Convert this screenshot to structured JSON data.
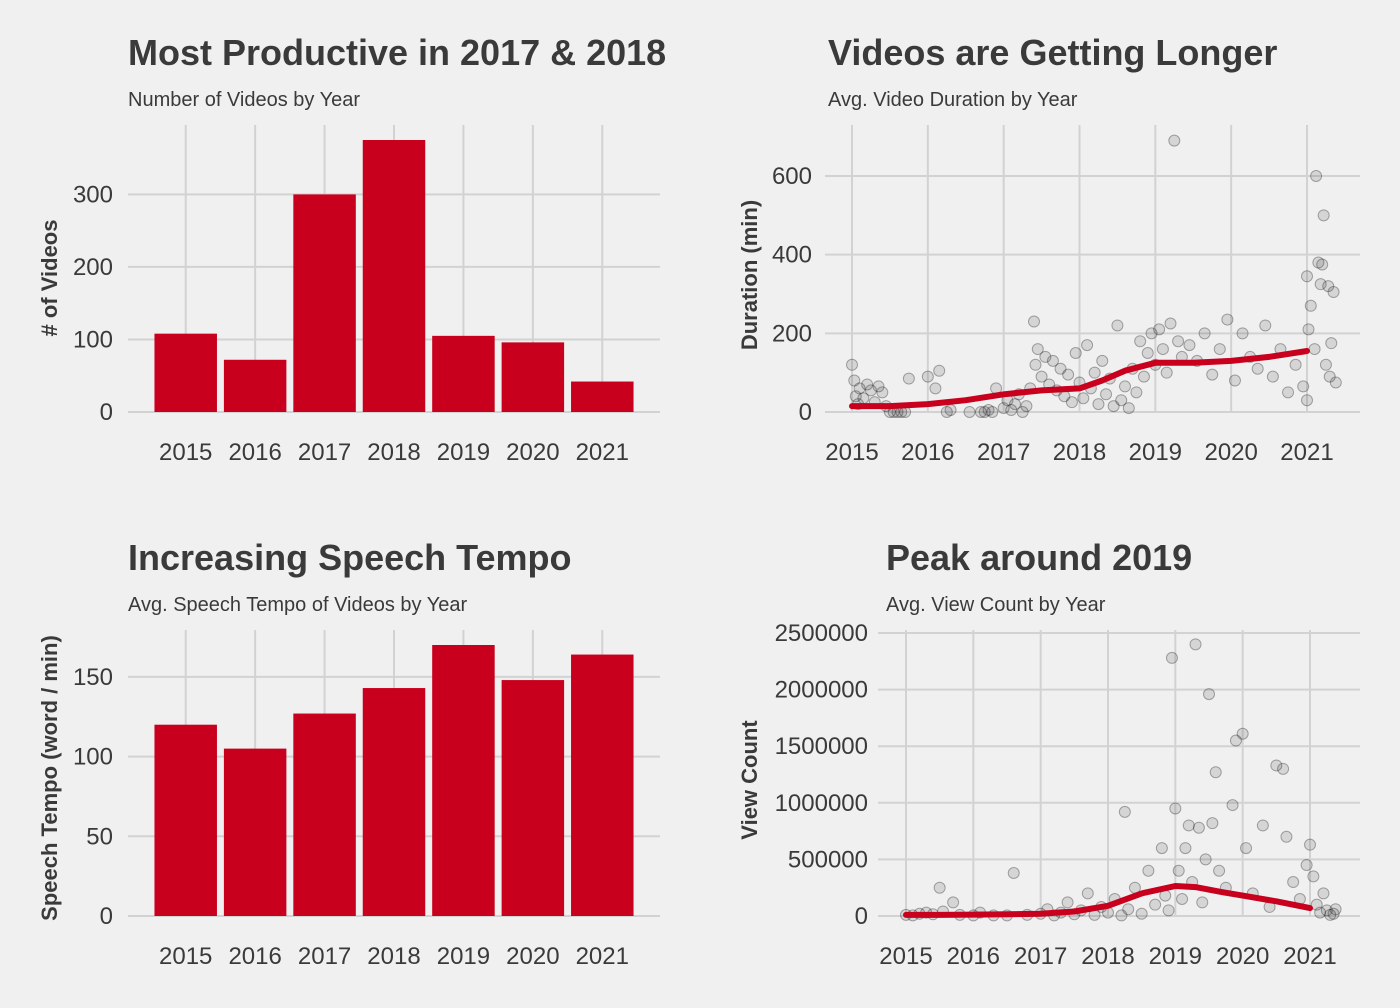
{
  "colors": {
    "background": "#f0f0f0",
    "bar": "#c8001e",
    "smooth_line": "#c8001e",
    "points": "#1a1a1a",
    "grid": "#d2d2d2",
    "text": "#3a3a3a"
  },
  "chart_data": [
    {
      "type": "bar",
      "title": "Most Productive in 2017 & 2018",
      "subtitle": "Number of Videos by Year",
      "xlabel": "",
      "ylabel": "# of Videos",
      "categories": [
        "2015",
        "2016",
        "2017",
        "2018",
        "2019",
        "2020",
        "2021"
      ],
      "values": [
        108,
        72,
        300,
        375,
        105,
        96,
        42
      ],
      "yticks": [
        0,
        100,
        200,
        300
      ],
      "ylim": [
        0,
        375
      ]
    },
    {
      "type": "scatter",
      "title": "Videos are Getting Longer",
      "subtitle": "Avg. Video Duration by Year",
      "xlabel": "",
      "ylabel": "Duration (min)",
      "xticks": [
        2015,
        2016,
        2017,
        2018,
        2019,
        2020,
        2021
      ],
      "yticks": [
        0,
        200,
        400,
        600
      ],
      "xlim": [
        2015,
        2021
      ],
      "ylim": [
        0,
        600
      ],
      "smooth_line": {
        "x": [
          2015.0,
          2015.5,
          2016.0,
          2016.5,
          2017.0,
          2017.5,
          2018.0,
          2018.3,
          2018.6,
          2019.0,
          2019.5,
          2020.0,
          2020.5,
          2021.0
        ],
        "y": [
          15,
          15,
          20,
          30,
          45,
          55,
          60,
          80,
          105,
          125,
          125,
          130,
          140,
          155
        ]
      },
      "points": [
        {
          "x": 2015.0,
          "y": 120
        },
        {
          "x": 2015.03,
          "y": 80
        },
        {
          "x": 2015.05,
          "y": 40
        },
        {
          "x": 2015.08,
          "y": 20
        },
        {
          "x": 2015.1,
          "y": 60
        },
        {
          "x": 2015.15,
          "y": 35
        },
        {
          "x": 2015.2,
          "y": 70
        },
        {
          "x": 2015.25,
          "y": 55
        },
        {
          "x": 2015.3,
          "y": 25
        },
        {
          "x": 2015.35,
          "y": 65
        },
        {
          "x": 2015.4,
          "y": 50
        },
        {
          "x": 2015.45,
          "y": 15
        },
        {
          "x": 2015.5,
          "y": 0
        },
        {
          "x": 2015.55,
          "y": 0
        },
        {
          "x": 2015.6,
          "y": 0
        },
        {
          "x": 2015.65,
          "y": 0
        },
        {
          "x": 2015.7,
          "y": 0
        },
        {
          "x": 2015.75,
          "y": 85
        },
        {
          "x": 2016.0,
          "y": 90
        },
        {
          "x": 2016.1,
          "y": 60
        },
        {
          "x": 2016.15,
          "y": 105
        },
        {
          "x": 2016.25,
          "y": 0
        },
        {
          "x": 2016.3,
          "y": 5
        },
        {
          "x": 2016.55,
          "y": 0
        },
        {
          "x": 2016.7,
          "y": 0
        },
        {
          "x": 2016.75,
          "y": 0
        },
        {
          "x": 2016.8,
          "y": 5
        },
        {
          "x": 2016.85,
          "y": 0
        },
        {
          "x": 2016.9,
          "y": 60
        },
        {
          "x": 2017.0,
          "y": 10
        },
        {
          "x": 2017.05,
          "y": 30
        },
        {
          "x": 2017.1,
          "y": 5
        },
        {
          "x": 2017.15,
          "y": 20
        },
        {
          "x": 2017.2,
          "y": 45
        },
        {
          "x": 2017.25,
          "y": 0
        },
        {
          "x": 2017.3,
          "y": 15
        },
        {
          "x": 2017.35,
          "y": 60
        },
        {
          "x": 2017.4,
          "y": 230
        },
        {
          "x": 2017.42,
          "y": 120
        },
        {
          "x": 2017.45,
          "y": 160
        },
        {
          "x": 2017.5,
          "y": 90
        },
        {
          "x": 2017.55,
          "y": 140
        },
        {
          "x": 2017.6,
          "y": 70
        },
        {
          "x": 2017.65,
          "y": 130
        },
        {
          "x": 2017.7,
          "y": 55
        },
        {
          "x": 2017.75,
          "y": 110
        },
        {
          "x": 2017.8,
          "y": 40
        },
        {
          "x": 2017.85,
          "y": 95
        },
        {
          "x": 2017.9,
          "y": 25
        },
        {
          "x": 2017.95,
          "y": 150
        },
        {
          "x": 2018.0,
          "y": 75
        },
        {
          "x": 2018.05,
          "y": 35
        },
        {
          "x": 2018.1,
          "y": 170
        },
        {
          "x": 2018.15,
          "y": 60
        },
        {
          "x": 2018.2,
          "y": 100
        },
        {
          "x": 2018.25,
          "y": 20
        },
        {
          "x": 2018.3,
          "y": 130
        },
        {
          "x": 2018.35,
          "y": 45
        },
        {
          "x": 2018.4,
          "y": 85
        },
        {
          "x": 2018.45,
          "y": 15
        },
        {
          "x": 2018.5,
          "y": 220
        },
        {
          "x": 2018.55,
          "y": 30
        },
        {
          "x": 2018.6,
          "y": 65
        },
        {
          "x": 2018.65,
          "y": 10
        },
        {
          "x": 2018.7,
          "y": 110
        },
        {
          "x": 2018.75,
          "y": 50
        },
        {
          "x": 2018.8,
          "y": 180
        },
        {
          "x": 2018.85,
          "y": 90
        },
        {
          "x": 2018.9,
          "y": 150
        },
        {
          "x": 2018.95,
          "y": 200
        },
        {
          "x": 2019.0,
          "y": 120
        },
        {
          "x": 2019.05,
          "y": 210
        },
        {
          "x": 2019.1,
          "y": 160
        },
        {
          "x": 2019.15,
          "y": 100
        },
        {
          "x": 2019.2,
          "y": 225
        },
        {
          "x": 2019.25,
          "y": 690
        },
        {
          "x": 2019.3,
          "y": 180
        },
        {
          "x": 2019.35,
          "y": 140
        },
        {
          "x": 2019.45,
          "y": 170
        },
        {
          "x": 2019.55,
          "y": 130
        },
        {
          "x": 2019.65,
          "y": 200
        },
        {
          "x": 2019.75,
          "y": 95
        },
        {
          "x": 2019.85,
          "y": 160
        },
        {
          "x": 2019.95,
          "y": 235
        },
        {
          "x": 2020.05,
          "y": 80
        },
        {
          "x": 2020.15,
          "y": 200
        },
        {
          "x": 2020.25,
          "y": 140
        },
        {
          "x": 2020.35,
          "y": 110
        },
        {
          "x": 2020.45,
          "y": 220
        },
        {
          "x": 2020.55,
          "y": 90
        },
        {
          "x": 2020.65,
          "y": 160
        },
        {
          "x": 2020.75,
          "y": 50
        },
        {
          "x": 2020.85,
          "y": 120
        },
        {
          "x": 2020.95,
          "y": 65
        },
        {
          "x": 2021.0,
          "y": 30
        },
        {
          "x": 2021.0,
          "y": 345
        },
        {
          "x": 2021.02,
          "y": 210
        },
        {
          "x": 2021.05,
          "y": 270
        },
        {
          "x": 2021.1,
          "y": 160
        },
        {
          "x": 2021.12,
          "y": 600
        },
        {
          "x": 2021.15,
          "y": 380
        },
        {
          "x": 2021.18,
          "y": 325
        },
        {
          "x": 2021.2,
          "y": 375
        },
        {
          "x": 2021.22,
          "y": 500
        },
        {
          "x": 2021.25,
          "y": 120
        },
        {
          "x": 2021.28,
          "y": 320
        },
        {
          "x": 2021.3,
          "y": 90
        },
        {
          "x": 2021.32,
          "y": 175
        },
        {
          "x": 2021.35,
          "y": 305
        },
        {
          "x": 2021.38,
          "y": 75
        }
      ]
    },
    {
      "type": "bar",
      "title": "Increasing Speech Tempo",
      "subtitle": "Avg. Speech Tempo of Videos by Year",
      "xlabel": "",
      "ylabel": "Speech Tempo (word / min)",
      "categories": [
        "2015",
        "2016",
        "2017",
        "2018",
        "2019",
        "2020",
        "2021"
      ],
      "values": [
        120,
        105,
        127,
        143,
        170,
        148,
        164
      ],
      "yticks": [
        0,
        50,
        100,
        150
      ],
      "ylim": [
        0,
        170
      ]
    },
    {
      "type": "scatter",
      "title": "Peak around 2019",
      "subtitle": "Avg. View Count by Year",
      "xlabel": "",
      "ylabel": "View Count",
      "xticks": [
        2015,
        2016,
        2017,
        2018,
        2019,
        2020,
        2021
      ],
      "yticks": [
        0,
        500000,
        1000000,
        1500000,
        2000000,
        2500000
      ],
      "xlim": [
        2015,
        2021
      ],
      "ylim": [
        0,
        2500000
      ],
      "smooth_line": {
        "x": [
          2015.0,
          2015.5,
          2016.0,
          2016.5,
          2017.0,
          2017.5,
          2018.0,
          2018.5,
          2019.0,
          2019.3,
          2019.7,
          2020.0,
          2020.5,
          2021.0
        ],
        "y": [
          10000,
          10000,
          12000,
          15000,
          20000,
          40000,
          90000,
          200000,
          265000,
          255000,
          210000,
          180000,
          130000,
          70000
        ]
      },
      "points": [
        {
          "x": 2015.0,
          "y": 10000
        },
        {
          "x": 2015.1,
          "y": 5000
        },
        {
          "x": 2015.2,
          "y": 20000
        },
        {
          "x": 2015.3,
          "y": 30000
        },
        {
          "x": 2015.4,
          "y": 15000
        },
        {
          "x": 2015.5,
          "y": 250000
        },
        {
          "x": 2015.55,
          "y": 40000
        },
        {
          "x": 2015.7,
          "y": 120000
        },
        {
          "x": 2015.8,
          "y": 10000
        },
        {
          "x": 2016.0,
          "y": 5000
        },
        {
          "x": 2016.1,
          "y": 30000
        },
        {
          "x": 2016.3,
          "y": 5000
        },
        {
          "x": 2016.5,
          "y": 5000
        },
        {
          "x": 2016.6,
          "y": 380000
        },
        {
          "x": 2016.8,
          "y": 10000
        },
        {
          "x": 2017.0,
          "y": 20000
        },
        {
          "x": 2017.1,
          "y": 60000
        },
        {
          "x": 2017.2,
          "y": 5000
        },
        {
          "x": 2017.3,
          "y": 30000
        },
        {
          "x": 2017.4,
          "y": 120000
        },
        {
          "x": 2017.5,
          "y": 15000
        },
        {
          "x": 2017.6,
          "y": 50000
        },
        {
          "x": 2017.7,
          "y": 200000
        },
        {
          "x": 2017.8,
          "y": 10000
        },
        {
          "x": 2017.9,
          "y": 80000
        },
        {
          "x": 2018.0,
          "y": 30000
        },
        {
          "x": 2018.1,
          "y": 150000
        },
        {
          "x": 2018.2,
          "y": 5000
        },
        {
          "x": 2018.25,
          "y": 920000
        },
        {
          "x": 2018.3,
          "y": 60000
        },
        {
          "x": 2018.4,
          "y": 250000
        },
        {
          "x": 2018.5,
          "y": 20000
        },
        {
          "x": 2018.6,
          "y": 400000
        },
        {
          "x": 2018.7,
          "y": 100000
        },
        {
          "x": 2018.8,
          "y": 600000
        },
        {
          "x": 2018.85,
          "y": 180000
        },
        {
          "x": 2018.9,
          "y": 50000
        },
        {
          "x": 2018.95,
          "y": 2280000
        },
        {
          "x": 2019.0,
          "y": 950000
        },
        {
          "x": 2019.05,
          "y": 400000
        },
        {
          "x": 2019.1,
          "y": 150000
        },
        {
          "x": 2019.15,
          "y": 600000
        },
        {
          "x": 2019.2,
          "y": 800000
        },
        {
          "x": 2019.25,
          "y": 300000
        },
        {
          "x": 2019.3,
          "y": 2400000
        },
        {
          "x": 2019.35,
          "y": 780000
        },
        {
          "x": 2019.4,
          "y": 120000
        },
        {
          "x": 2019.45,
          "y": 500000
        },
        {
          "x": 2019.5,
          "y": 1960000
        },
        {
          "x": 2019.55,
          "y": 820000
        },
        {
          "x": 2019.6,
          "y": 1270000
        },
        {
          "x": 2019.65,
          "y": 400000
        },
        {
          "x": 2019.75,
          "y": 250000
        },
        {
          "x": 2019.85,
          "y": 980000
        },
        {
          "x": 2019.9,
          "y": 1550000
        },
        {
          "x": 2020.0,
          "y": 1610000
        },
        {
          "x": 2020.05,
          "y": 600000
        },
        {
          "x": 2020.15,
          "y": 200000
        },
        {
          "x": 2020.3,
          "y": 800000
        },
        {
          "x": 2020.4,
          "y": 80000
        },
        {
          "x": 2020.5,
          "y": 1330000
        },
        {
          "x": 2020.6,
          "y": 1300000
        },
        {
          "x": 2020.65,
          "y": 700000
        },
        {
          "x": 2020.75,
          "y": 300000
        },
        {
          "x": 2020.85,
          "y": 150000
        },
        {
          "x": 2020.95,
          "y": 450000
        },
        {
          "x": 2021.0,
          "y": 630000
        },
        {
          "x": 2021.05,
          "y": 350000
        },
        {
          "x": 2021.1,
          "y": 100000
        },
        {
          "x": 2021.15,
          "y": 30000
        },
        {
          "x": 2021.2,
          "y": 200000
        },
        {
          "x": 2021.25,
          "y": 50000
        },
        {
          "x": 2021.3,
          "y": 10000
        },
        {
          "x": 2021.35,
          "y": 20000
        },
        {
          "x": 2021.38,
          "y": 60000
        }
      ]
    }
  ]
}
